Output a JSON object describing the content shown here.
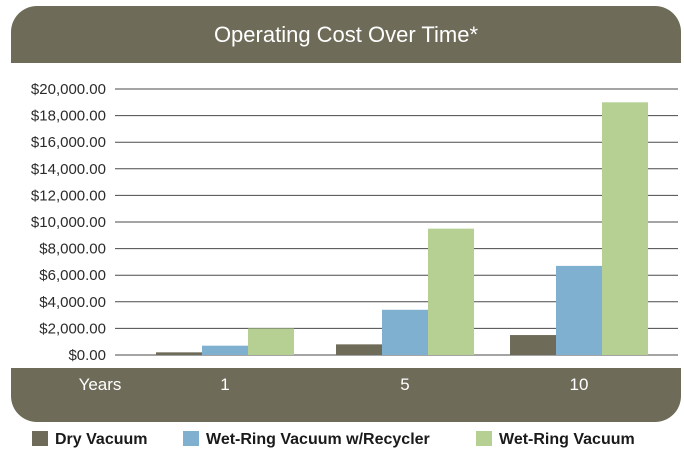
{
  "chart_data": {
    "type": "bar",
    "title": "Operating Cost Over Time*",
    "xlabel": "Years",
    "ylabel": "",
    "categories": [
      "1",
      "5",
      "10"
    ],
    "series": [
      {
        "name": "Dry Vacuum",
        "values": [
          200,
          800,
          1500
        ],
        "color": "#6e6b58"
      },
      {
        "name": "Wet-Ring Vacuum w/Recycler",
        "values": [
          700,
          3400,
          6700
        ],
        "color": "#7fb0cf"
      },
      {
        "name": "Wet-Ring Vacuum",
        "values": [
          2000,
          9500,
          19000
        ],
        "color": "#b6cf93"
      }
    ],
    "ylim": [
      0,
      20000
    ],
    "yticks": [
      "$20,000.00",
      "$18,000.00",
      "$16,000.00",
      "$14,000.00",
      "$12,000.00",
      "$10,000.00",
      "$8,000.00",
      "$6,000.00",
      "$4,000.00",
      "$2,000.00",
      "$0.00"
    ],
    "grid": true,
    "legend_position": "bottom",
    "colors": {
      "frame": "#6e6b58",
      "panel": "#ffffff",
      "gridline": "#4a4a4a"
    }
  }
}
